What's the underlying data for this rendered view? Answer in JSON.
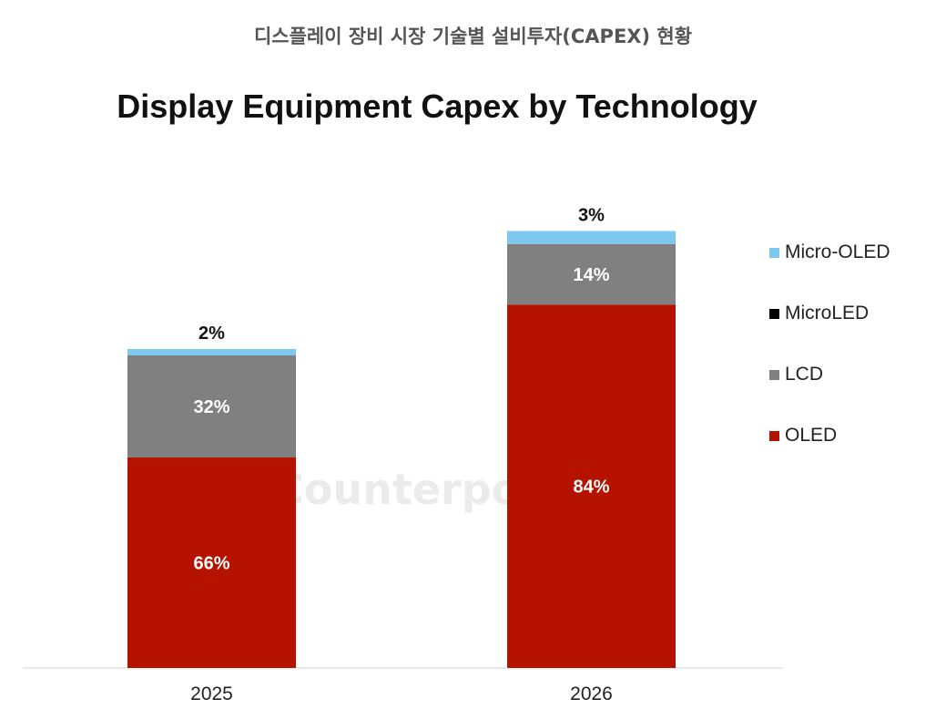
{
  "header": {
    "korean_title": "디스플레이 장비 시장 기술별 설비투자(CAPEX) 현황"
  },
  "chart_data": {
    "type": "bar",
    "stacked": true,
    "title": "Display Equipment Capex by Technology",
    "xlabel": "",
    "ylabel": "",
    "categories": [
      "2025",
      "2026"
    ],
    "relative_totals": [
      1.0,
      1.37
    ],
    "series": [
      {
        "name": "OLED",
        "color": "#b51200",
        "values": [
          66,
          84
        ],
        "labels": [
          "66%",
          "84%"
        ]
      },
      {
        "name": "LCD",
        "color": "#808080",
        "values": [
          32,
          14
        ],
        "labels": [
          "32%",
          "14%"
        ]
      },
      {
        "name": "MicroLED",
        "color": "#000000",
        "values": [
          0,
          0
        ],
        "labels": [
          "",
          ""
        ]
      },
      {
        "name": "Micro-OLED",
        "color": "#7cc8ee",
        "values": [
          2,
          3
        ],
        "labels": [
          "2%",
          "3%"
        ]
      }
    ],
    "legend": {
      "position": "right",
      "items": [
        {
          "name": "Micro-OLED",
          "color": "#7cc8ee"
        },
        {
          "name": "MicroLED",
          "color": "#000000"
        },
        {
          "name": "LCD",
          "color": "#808080"
        },
        {
          "name": "OLED",
          "color": "#b51200"
        }
      ]
    },
    "grid": false
  },
  "watermark": {
    "text": "Counterpoint"
  }
}
